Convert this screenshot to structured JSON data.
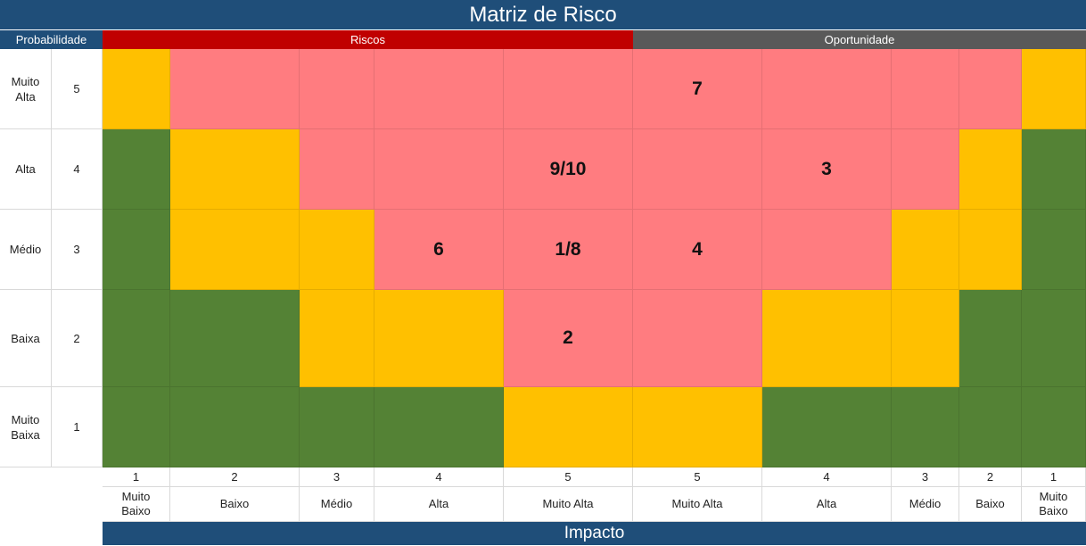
{
  "title": "Matriz de Risco",
  "headers": {
    "probabilidade": "Probabilidade",
    "riscos": "Riscos",
    "oportunidade": "Oportunidade"
  },
  "colors": {
    "high": "#ff7c80",
    "medium": "#ffc000",
    "low": "#548235",
    "riscos_header": "#c00000",
    "oportunidade_header": "#595959",
    "title_bar": "#1f4e79"
  },
  "rows": [
    {
      "label": "Muito\nAlta",
      "value": "5"
    },
    {
      "label": "Alta",
      "value": "4"
    },
    {
      "label": "Médio",
      "value": "3"
    },
    {
      "label": "Baixa",
      "value": "2"
    },
    {
      "label": "Muito\nBaixa",
      "value": "1"
    }
  ],
  "columns": [
    {
      "value": "1",
      "label": "Muito\nBaixo"
    },
    {
      "value": "2",
      "label": "Baixo"
    },
    {
      "value": "3",
      "label": "Médio"
    },
    {
      "value": "4",
      "label": "Alta"
    },
    {
      "value": "5",
      "label": "Muito Alta"
    },
    {
      "value": "5",
      "label": "Muito Alta"
    },
    {
      "value": "4",
      "label": "Alta"
    },
    {
      "value": "3",
      "label": "Médio"
    },
    {
      "value": "2",
      "label": "Baixo"
    },
    {
      "value": "1",
      "label": "Muito\nBaixo"
    }
  ],
  "matrix": [
    [
      {
        "level": "medium",
        "text": ""
      },
      {
        "level": "high",
        "text": ""
      },
      {
        "level": "high",
        "text": ""
      },
      {
        "level": "high",
        "text": ""
      },
      {
        "level": "high",
        "text": ""
      },
      {
        "level": "high",
        "text": "7"
      },
      {
        "level": "high",
        "text": ""
      },
      {
        "level": "high",
        "text": ""
      },
      {
        "level": "high",
        "text": ""
      },
      {
        "level": "medium",
        "text": ""
      }
    ],
    [
      {
        "level": "low",
        "text": ""
      },
      {
        "level": "medium",
        "text": ""
      },
      {
        "level": "high",
        "text": ""
      },
      {
        "level": "high",
        "text": ""
      },
      {
        "level": "high",
        "text": "9/10"
      },
      {
        "level": "high",
        "text": ""
      },
      {
        "level": "high",
        "text": "3"
      },
      {
        "level": "high",
        "text": ""
      },
      {
        "level": "medium",
        "text": ""
      },
      {
        "level": "low",
        "text": ""
      }
    ],
    [
      {
        "level": "low",
        "text": ""
      },
      {
        "level": "medium",
        "text": ""
      },
      {
        "level": "medium",
        "text": ""
      },
      {
        "level": "high",
        "text": "6"
      },
      {
        "level": "high",
        "text": "1/8"
      },
      {
        "level": "high",
        "text": "4"
      },
      {
        "level": "high",
        "text": ""
      },
      {
        "level": "medium",
        "text": ""
      },
      {
        "level": "medium",
        "text": ""
      },
      {
        "level": "low",
        "text": ""
      }
    ],
    [
      {
        "level": "low",
        "text": ""
      },
      {
        "level": "low",
        "text": ""
      },
      {
        "level": "medium",
        "text": ""
      },
      {
        "level": "medium",
        "text": ""
      },
      {
        "level": "high",
        "text": "2"
      },
      {
        "level": "high",
        "text": ""
      },
      {
        "level": "medium",
        "text": ""
      },
      {
        "level": "medium",
        "text": ""
      },
      {
        "level": "low",
        "text": ""
      },
      {
        "level": "low",
        "text": ""
      }
    ],
    [
      {
        "level": "low",
        "text": ""
      },
      {
        "level": "low",
        "text": ""
      },
      {
        "level": "low",
        "text": ""
      },
      {
        "level": "low",
        "text": ""
      },
      {
        "level": "medium",
        "text": ""
      },
      {
        "level": "medium",
        "text": ""
      },
      {
        "level": "low",
        "text": ""
      },
      {
        "level": "low",
        "text": ""
      },
      {
        "level": "low",
        "text": ""
      },
      {
        "level": "low",
        "text": ""
      }
    ]
  ],
  "footer": "Impacto"
}
